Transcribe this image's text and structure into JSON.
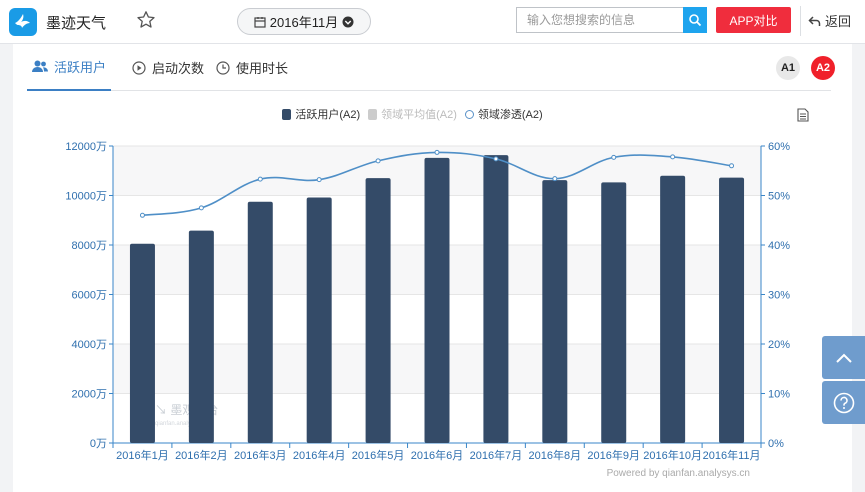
{
  "header": {
    "app_name": "墨迹天气",
    "date_label": "2016年11月",
    "search_placeholder": "输入您想搜索的信息",
    "compare_label": "APP对比",
    "back_label": "返回"
  },
  "tabs": [
    {
      "label": "活跃用户",
      "active": true
    },
    {
      "label": "启动次数",
      "active": false
    },
    {
      "label": "使用时长",
      "active": false
    }
  ],
  "compare_badges": [
    "A1",
    "A2"
  ],
  "colors": {
    "bar": "#344b68",
    "line": "#4f8fc7",
    "axis": "#3a86c8",
    "accent_red": "#f02d3d",
    "search_blue": "#1ea4ee"
  },
  "chart_data": {
    "type": "bar",
    "legend": [
      {
        "name": "活跃用户(A2)",
        "style": "bar",
        "color": "#344b68",
        "active": true
      },
      {
        "name": "领域平均值(A2)",
        "style": "bar",
        "color": "#cccccc",
        "active": false
      },
      {
        "name": "领域渗透(A2)",
        "style": "line",
        "color": "#4f8fc7",
        "active": true
      }
    ],
    "categories": [
      "2016年1月",
      "2016年2月",
      "2016年3月",
      "2016年4月",
      "2016年5月",
      "2016年6月",
      "2016年7月",
      "2016年8月",
      "2016年9月",
      "2016年10月",
      "2016年11月"
    ],
    "series": [
      {
        "name": "活跃用户(A2)",
        "type": "bar",
        "axis": "left",
        "values": [
          8050,
          8580,
          9750,
          9920,
          10700,
          11520,
          11630,
          10620,
          10530,
          10800,
          10720
        ]
      },
      {
        "name": "领域渗透(A2)",
        "type": "line",
        "axis": "right",
        "values": [
          46,
          47.5,
          53.3,
          53.2,
          57.0,
          58.7,
          57.4,
          53.4,
          57.7,
          57.8,
          56.0
        ]
      }
    ],
    "y_left": {
      "min": 0,
      "max": 12000,
      "ticks": [
        "0万",
        "2000万",
        "4000万",
        "6000万",
        "8000万",
        "10000万",
        "12000万"
      ]
    },
    "y_right": {
      "min": 0,
      "max": 60,
      "ticks": [
        "0%",
        "10%",
        "20%",
        "30%",
        "40%",
        "50%",
        "60%"
      ]
    },
    "watermark": "墨观平台",
    "watermark_url": "qianfan.analysys.cn",
    "credit": "Powered by qianfan.analysys.cn"
  }
}
